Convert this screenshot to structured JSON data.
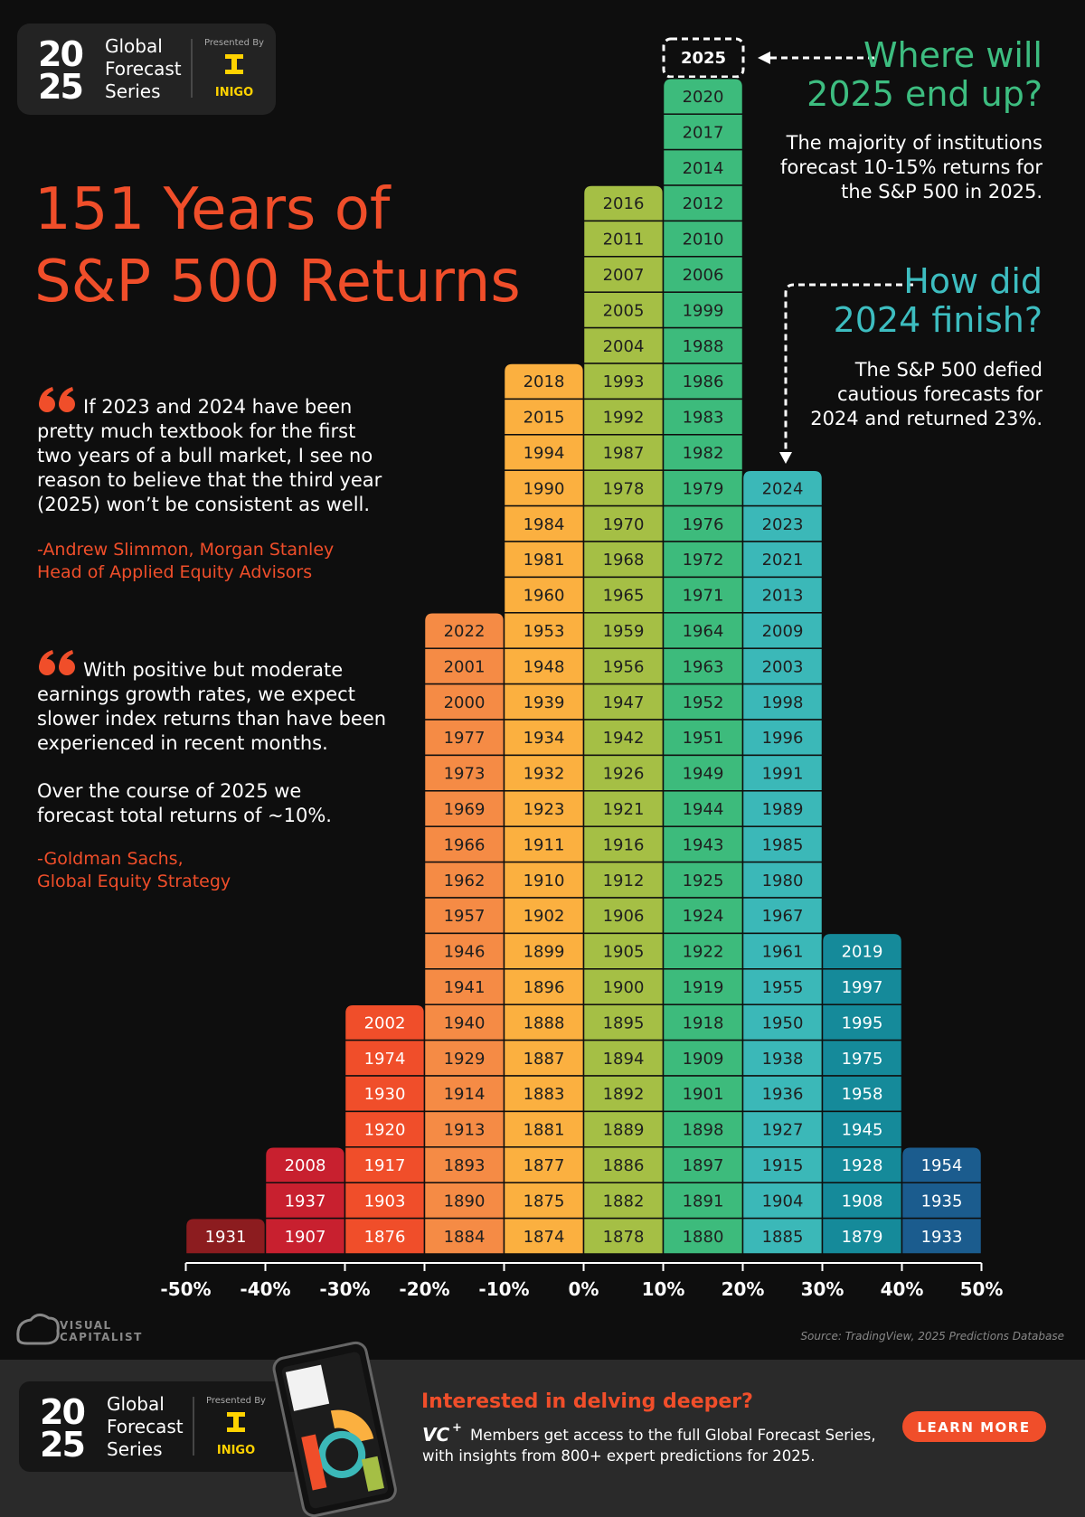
{
  "header": {
    "logo_top": "20",
    "logo_bottom": "25",
    "series_lines": [
      "Global",
      "Forecast",
      "Series"
    ],
    "presented_by": "Presented By",
    "sponsor": "INIGO"
  },
  "title_lines": [
    "151 Years of",
    "S&P 500 Returns"
  ],
  "quotes": [
    {
      "lines": [
        "If 2023 and 2024 have been",
        "pretty much textbook for the first",
        "two years of a bull market, I see no",
        "reason to believe that the third year",
        "(2025) won’t be consistent as well."
      ],
      "attribution": [
        "-Andrew Slimmon, Morgan Stanley",
        "Head of Applied Equity Advisors"
      ]
    },
    {
      "lines": [
        "With positive but moderate",
        "earnings growth rates, we expect",
        "slower index returns than have been",
        "experienced in recent months.",
        "Over the course of 2025 we",
        "forecast total returns of ~10%."
      ],
      "attribution": [
        "-Goldman Sachs,",
        "Global Equity Strategy"
      ]
    }
  ],
  "annotations": [
    {
      "heading": [
        "Where will",
        "2025 end up?"
      ],
      "text": [
        "The majority of institutions",
        "forecast 10-15% returns for",
        "the S&P 500 in 2025."
      ]
    },
    {
      "heading": [
        "How did",
        "2024 finish?"
      ],
      "text": [
        "The S&P 500 defied",
        "cautious forecasts for",
        "2024 and returned 23%."
      ]
    }
  ],
  "chart_data": {
    "type": "year-histogram",
    "forecast_label": "2025",
    "xlim": [
      -50,
      50
    ],
    "xticks": [
      {
        "value": -50,
        "label": "-50%"
      },
      {
        "value": -40,
        "label": "-40%"
      },
      {
        "value": -30,
        "label": "-30%"
      },
      {
        "value": -20,
        "label": "-20%"
      },
      {
        "value": -10,
        "label": "-10%"
      },
      {
        "value": 0,
        "label": "0%"
      },
      {
        "value": 10,
        "label": "10%"
      },
      {
        "value": 20,
        "label": "20%"
      },
      {
        "value": 30,
        "label": "30%"
      },
      {
        "value": 40,
        "label": "40%"
      },
      {
        "value": 50,
        "label": "50%"
      }
    ],
    "bins": [
      -50,
      -40,
      -30,
      -20,
      -10,
      0,
      10,
      20,
      30,
      40,
      50
    ],
    "columns": [
      {
        "color": "#8c1c1f",
        "label_color": "#ffffff",
        "years": [
          1931
        ]
      },
      {
        "color": "#c8202f",
        "label_color": "#ffffff",
        "years": [
          2008,
          1937,
          1907
        ]
      },
      {
        "color": "#f04e2a",
        "label_color": "#ffffff",
        "years": [
          2002,
          1974,
          1930,
          1920,
          1917,
          1903,
          1876
        ]
      },
      {
        "color": "#f58b45",
        "label_color": "#1f1f1f",
        "years": [
          2022,
          2001,
          2000,
          1977,
          1973,
          1969,
          1966,
          1962,
          1957,
          1946,
          1941,
          1940,
          1929,
          1914,
          1913,
          1893,
          1890,
          1884
        ]
      },
      {
        "color": "#fbb040",
        "label_color": "#1f1f1f",
        "years": [
          2018,
          2015,
          1994,
          1990,
          1984,
          1981,
          1960,
          1953,
          1948,
          1939,
          1934,
          1932,
          1923,
          1911,
          1910,
          1902,
          1899,
          1896,
          1888,
          1887,
          1883,
          1881,
          1877,
          1875,
          1874
        ]
      },
      {
        "color": "#a5bf45",
        "label_color": "#1f1f1f",
        "years": [
          2016,
          2011,
          2007,
          2005,
          2004,
          1993,
          1992,
          1987,
          1978,
          1970,
          1968,
          1965,
          1959,
          1956,
          1947,
          1942,
          1926,
          1921,
          1916,
          1912,
          1906,
          1905,
          1900,
          1895,
          1894,
          1892,
          1889,
          1886,
          1882,
          1878
        ]
      },
      {
        "color": "#3dbb7c",
        "label_color": "#1f1f1f",
        "years": [
          2020,
          2017,
          2014,
          2012,
          2010,
          2006,
          1999,
          1988,
          1986,
          1983,
          1982,
          1979,
          1976,
          1972,
          1971,
          1964,
          1963,
          1952,
          1951,
          1949,
          1944,
          1943,
          1925,
          1924,
          1922,
          1919,
          1918,
          1909,
          1901,
          1898,
          1897,
          1891,
          1880
        ]
      },
      {
        "color": "#3bb8b8",
        "label_color": "#1f1f1f",
        "years": [
          2024,
          2023,
          2021,
          2013,
          2009,
          2003,
          1998,
          1996,
          1991,
          1989,
          1985,
          1980,
          1967,
          1961,
          1955,
          1950,
          1938,
          1936,
          1927,
          1915,
          1904,
          1885
        ]
      },
      {
        "color": "#158a9a",
        "label_color": "#ffffff",
        "years": [
          2019,
          1997,
          1995,
          1975,
          1958,
          1945,
          1928,
          1908,
          1879
        ]
      },
      {
        "color": "#1b5c8e",
        "label_color": "#ffffff",
        "years": [
          1954,
          1935,
          1933
        ]
      }
    ]
  },
  "brand": [
    "VISUAL",
    "CAPITALIST"
  ],
  "source": "Source: TradingView, 2025 Predictions Database",
  "footer": {
    "heading": "Interested in delving deeper?",
    "vc_logo": "VC",
    "vc_plus": "+",
    "lines": [
      "Members get access to the full Global Forecast Series,",
      "with insights from 800+ expert predictions for 2025."
    ],
    "button": "LEARN MORE"
  }
}
